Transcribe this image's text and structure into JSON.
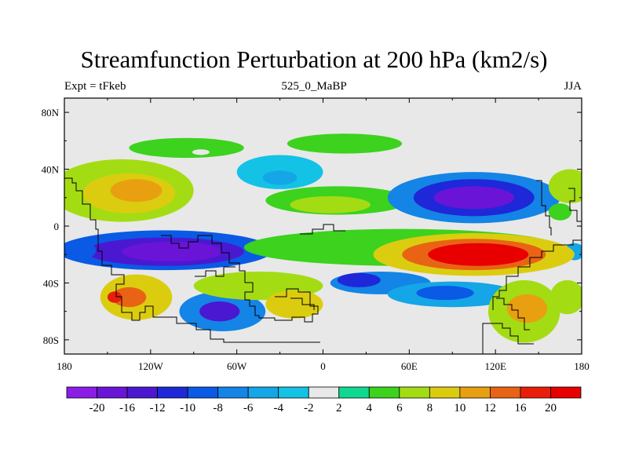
{
  "title": "Streamfunction Perturbation at 200 hPa (km2/s)",
  "left_string": "Expt = tFkeb",
  "center_string": "525_0_MaBP",
  "right_string": "JJA",
  "chart_data": {
    "type": "heatmap",
    "projection": "cylindrical equidistant",
    "x_ticks": [
      "180",
      "120W",
      "60W",
      "0",
      "60E",
      "120E",
      "180"
    ],
    "x_values": [
      -180,
      -120,
      -60,
      0,
      60,
      120,
      180
    ],
    "y_ticks": [
      "80N",
      "40N",
      "0",
      "40S",
      "80S"
    ],
    "y_values": [
      80,
      40,
      0,
      -40,
      -80
    ],
    "xlim": [
      -180,
      180
    ],
    "ylim": [
      -90,
      90
    ],
    "colorbar": {
      "labels": [
        "-20",
        "-16",
        "-12",
        "-10",
        "-8",
        "-6",
        "-4",
        "-2",
        "2",
        "4",
        "6",
        "8",
        "10",
        "12",
        "16",
        "20"
      ],
      "colors": [
        "#8a1ee6",
        "#6a14d8",
        "#4a18d0",
        "#1e28d8",
        "#0a5ae6",
        "#1484e6",
        "#14a6e6",
        "#14c2e6",
        "#e8e8e8",
        "#10d890",
        "#3cd21e",
        "#a4dc14",
        "#dccc10",
        "#e8a010",
        "#e86414",
        "#e81e0a",
        "#e80000"
      ]
    },
    "blobs": [
      {
        "lon": -95,
        "lat": 55,
        "rx": 40,
        "ry": 7,
        "v": 4
      },
      {
        "lon": -85,
        "lat": 52,
        "rx": 6,
        "ry": 2,
        "v": -2
      },
      {
        "lon": 15,
        "lat": 58,
        "rx": 40,
        "ry": 7,
        "v": 4
      },
      {
        "lon": -30,
        "lat": 38,
        "rx": 30,
        "ry": 12,
        "v": -4
      },
      {
        "lon": -30,
        "lat": 34,
        "rx": 12,
        "ry": 5,
        "v": -6
      },
      {
        "lon": 45,
        "lat": 35,
        "rx": 10,
        "ry": 3,
        "v": -2
      },
      {
        "lon": 10,
        "lat": 18,
        "rx": 50,
        "ry": 10,
        "v": 4
      },
      {
        "lon": 5,
        "lat": 15,
        "rx": 28,
        "ry": 6,
        "v": 6
      },
      {
        "lon": -140,
        "lat": 25,
        "rx": 50,
        "ry": 22,
        "v": 6
      },
      {
        "lon": -135,
        "lat": 23,
        "rx": 32,
        "ry": 14,
        "v": 8
      },
      {
        "lon": -130,
        "lat": 25,
        "rx": 18,
        "ry": 8,
        "v": 10
      },
      {
        "lon": 105,
        "lat": 20,
        "rx": 60,
        "ry": 18,
        "v": -8
      },
      {
        "lon": 105,
        "lat": 20,
        "rx": 42,
        "ry": 13,
        "v": -12
      },
      {
        "lon": 105,
        "lat": 20,
        "rx": 28,
        "ry": 8,
        "v": -18
      },
      {
        "lon": 172,
        "lat": 28,
        "rx": 15,
        "ry": 12,
        "v": 6
      },
      {
        "lon": 165,
        "lat": 10,
        "rx": 8,
        "ry": 6,
        "v": 4
      },
      {
        "lon": -110,
        "lat": -17,
        "rx": 75,
        "ry": 14,
        "v": -10
      },
      {
        "lon": -110,
        "lat": -18,
        "rx": 55,
        "ry": 10,
        "v": -14
      },
      {
        "lon": -105,
        "lat": -18,
        "rx": 35,
        "ry": 7,
        "v": -20
      },
      {
        "lon": -170,
        "lat": -17,
        "rx": 12,
        "ry": 7,
        "v": -10
      },
      {
        "lon": 175,
        "lat": -18,
        "rx": 7,
        "ry": 6,
        "v": -6
      },
      {
        "lon": 55,
        "lat": -15,
        "rx": 110,
        "ry": 13,
        "v": 4
      },
      {
        "lon": 105,
        "lat": -20,
        "rx": 70,
        "ry": 15,
        "v": 8
      },
      {
        "lon": 105,
        "lat": -20,
        "rx": 50,
        "ry": 11,
        "v": 12
      },
      {
        "lon": 108,
        "lat": -20,
        "rx": 35,
        "ry": 8,
        "v": 22
      },
      {
        "lon": -130,
        "lat": -50,
        "rx": 25,
        "ry": 16,
        "v": 8
      },
      {
        "lon": -135,
        "lat": -50,
        "rx": 12,
        "ry": 7,
        "v": 12
      },
      {
        "lon": -145,
        "lat": -50,
        "rx": 5,
        "ry": 4,
        "v": 16
      },
      {
        "lon": -70,
        "lat": -60,
        "rx": 30,
        "ry": 14,
        "v": -8
      },
      {
        "lon": -72,
        "lat": -60,
        "rx": 14,
        "ry": 7,
        "v": -14
      },
      {
        "lon": -45,
        "lat": -42,
        "rx": 45,
        "ry": 10,
        "v": 6
      },
      {
        "lon": -20,
        "lat": -55,
        "rx": 20,
        "ry": 10,
        "v": 8
      },
      {
        "lon": 40,
        "lat": -40,
        "rx": 35,
        "ry": 8,
        "v": -8
      },
      {
        "lon": 25,
        "lat": -38,
        "rx": 15,
        "ry": 5,
        "v": -12
      },
      {
        "lon": 90,
        "lat": -48,
        "rx": 45,
        "ry": 9,
        "v": -6
      },
      {
        "lon": 85,
        "lat": -47,
        "rx": 20,
        "ry": 5,
        "v": -10
      },
      {
        "lon": 140,
        "lat": -60,
        "rx": 25,
        "ry": 22,
        "v": 6
      },
      {
        "lon": 142,
        "lat": -58,
        "rx": 14,
        "ry": 10,
        "v": 10
      },
      {
        "lon": 170,
        "lat": -50,
        "rx": 12,
        "ry": 12,
        "v": 6
      }
    ]
  }
}
